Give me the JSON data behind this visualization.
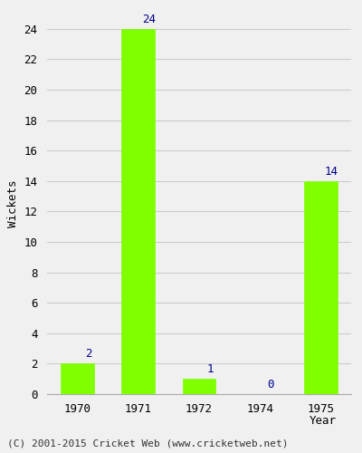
{
  "years": [
    "1970",
    "1971",
    "1972",
    "1974",
    "1975"
  ],
  "wickets": [
    2,
    24,
    1,
    0,
    14
  ],
  "bar_color": "#7fff00",
  "bar_edgecolor": "#7fff00",
  "ylabel": "Wickets",
  "xlabel": "Year",
  "ylim": [
    0,
    25
  ],
  "yticks": [
    0,
    2,
    4,
    6,
    8,
    10,
    12,
    14,
    16,
    18,
    20,
    22,
    24
  ],
  "value_label_color": "#00008b",
  "value_label_fontsize": 9,
  "axis_label_fontsize": 9,
  "tick_fontsize": 9,
  "footer_text": "(C) 2001-2015 Cricket Web (www.cricketweb.net)",
  "footer_fontsize": 8,
  "background_color": "#f0f0f0",
  "grid_color": "#cccccc",
  "bar_width": 0.55
}
